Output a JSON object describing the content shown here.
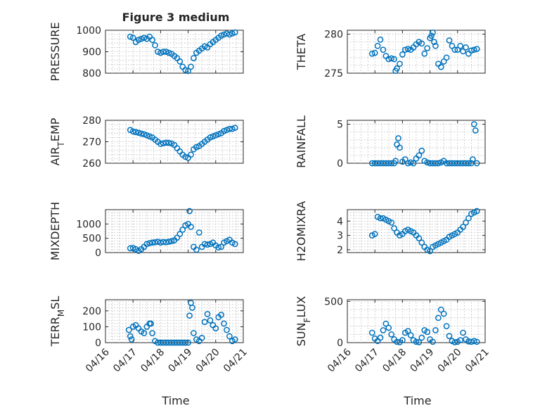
{
  "figure": {
    "title": "Figure 3 medium"
  },
  "time_ticks": [
    "04/16",
    "04/17",
    "04/18",
    "04/19",
    "04/20",
    "04/21"
  ],
  "marker_color": "#0072BD",
  "chart_data": [
    {
      "type": "scatter",
      "ylabel": "PRESSURE",
      "ylim": [
        800,
        1000
      ],
      "yticks": [
        800,
        900,
        1000
      ],
      "ytick_labels": [
        "800",
        "900",
        "1000"
      ],
      "xlabel": "",
      "title": "Figure 3 medium",
      "grid": true,
      "xlim": [
        0,
        5
      ],
      "x_unit": "days since 04/16",
      "x": [
        0.9,
        1.0,
        1.1,
        1.2,
        1.3,
        1.4,
        1.5,
        1.6,
        1.7,
        1.8,
        1.9,
        2.0,
        2.1,
        2.2,
        2.3,
        2.4,
        2.5,
        2.6,
        2.7,
        2.8,
        2.9,
        3.0,
        3.1,
        3.2,
        3.3,
        3.4,
        3.5,
        3.6,
        3.7,
        3.8,
        3.9,
        4.0,
        4.1,
        4.2,
        4.3,
        4.4,
        4.5,
        4.6,
        4.7
      ],
      "y": [
        970,
        965,
        945,
        955,
        960,
        965,
        960,
        970,
        955,
        930,
        900,
        895,
        900,
        900,
        895,
        890,
        880,
        870,
        855,
        830,
        815,
        810,
        830,
        870,
        895,
        905,
        915,
        925,
        920,
        935,
        945,
        955,
        965,
        975,
        980,
        985,
        980,
        985,
        990
      ]
    },
    {
      "type": "scatter",
      "ylabel": "THETA",
      "ylim": [
        275,
        280.5
      ],
      "yticks": [
        275,
        280
      ],
      "ytick_labels": [
        "275",
        "280"
      ],
      "xlabel": "",
      "grid": true,
      "xlim": [
        0,
        5
      ],
      "x": [
        0.9,
        1.0,
        1.1,
        1.2,
        1.3,
        1.4,
        1.5,
        1.6,
        1.7,
        1.75,
        1.8,
        1.9,
        2.0,
        2.1,
        2.2,
        2.3,
        2.4,
        2.5,
        2.6,
        2.7,
        2.8,
        2.9,
        3.0,
        3.05,
        3.1,
        3.15,
        3.2,
        3.3,
        3.4,
        3.5,
        3.6,
        3.7,
        3.8,
        3.9,
        4.0,
        4.1,
        4.2,
        4.3,
        4.4,
        4.5,
        4.6,
        4.7
      ],
      "y": [
        277.5,
        277.6,
        278.5,
        279.3,
        278.0,
        277.2,
        276.8,
        276.9,
        276.8,
        275.3,
        275.6,
        276.2,
        277.4,
        278.0,
        278.1,
        278.0,
        278.3,
        278.7,
        279.0,
        278.8,
        277.5,
        278.2,
        279.5,
        279.8,
        280.2,
        279.0,
        278.5,
        276.2,
        275.8,
        276.5,
        277.0,
        279.2,
        278.5,
        278.0,
        278.0,
        278.5,
        277.8,
        278.3,
        277.5,
        277.9,
        278.0,
        278.1
      ]
    },
    {
      "type": "scatter",
      "ylabel": "AIR_TEMP",
      "ylim": [
        260,
        280
      ],
      "yticks": [
        260,
        270,
        280
      ],
      "ytick_labels": [
        "260",
        "270",
        "280"
      ],
      "xlabel": "",
      "grid": true,
      "xlim": [
        0,
        5
      ],
      "x": [
        0.9,
        1.0,
        1.1,
        1.2,
        1.3,
        1.4,
        1.5,
        1.6,
        1.7,
        1.8,
        1.9,
        2.0,
        2.1,
        2.2,
        2.3,
        2.4,
        2.5,
        2.6,
        2.7,
        2.8,
        2.9,
        3.0,
        3.1,
        3.2,
        3.3,
        3.4,
        3.5,
        3.6,
        3.7,
        3.8,
        3.9,
        4.0,
        4.1,
        4.2,
        4.3,
        4.4,
        4.5,
        4.6,
        4.7
      ],
      "y": [
        275.5,
        274.8,
        274.5,
        274.2,
        273.8,
        273.5,
        273.0,
        272.5,
        272.0,
        271.0,
        270.0,
        269.0,
        269.3,
        269.6,
        269.5,
        269.2,
        268.5,
        267.0,
        265.5,
        264.0,
        263.0,
        262.5,
        264.0,
        266.5,
        267.5,
        268.0,
        269.0,
        270.0,
        271.0,
        272.0,
        272.5,
        273.0,
        273.5,
        274.0,
        275.0,
        275.5,
        276.0,
        276.0,
        276.5
      ]
    },
    {
      "type": "scatter",
      "ylabel": "RAINFALL",
      "ylim": [
        0,
        5.5
      ],
      "yticks": [
        0,
        5
      ],
      "ytick_labels": [
        "0",
        "5"
      ],
      "xlabel": "",
      "grid": true,
      "xlim": [
        0,
        5
      ],
      "x": [
        0.9,
        1.0,
        1.1,
        1.2,
        1.3,
        1.4,
        1.5,
        1.6,
        1.7,
        1.75,
        1.8,
        1.85,
        1.9,
        2.0,
        2.1,
        2.2,
        2.3,
        2.4,
        2.5,
        2.6,
        2.7,
        2.8,
        2.9,
        3.0,
        3.1,
        3.2,
        3.3,
        3.4,
        3.5,
        3.6,
        3.7,
        3.8,
        3.9,
        4.0,
        4.1,
        4.2,
        4.3,
        4.4,
        4.5,
        4.55,
        4.6,
        4.65,
        4.7
      ],
      "y": [
        0,
        0,
        0,
        0,
        0,
        0,
        0,
        0,
        0,
        0.3,
        2.4,
        3.2,
        2.0,
        0.2,
        0.5,
        0,
        0.1,
        0,
        0.6,
        1.0,
        1.6,
        0.3,
        0.1,
        0,
        0,
        0,
        0,
        0.1,
        0.3,
        0,
        0,
        0,
        0,
        0,
        0,
        0,
        0,
        0,
        0,
        0.5,
        5.0,
        4.2,
        0
      ]
    },
    {
      "type": "scatter",
      "ylabel": "MIXDEPTH",
      "ylim": [
        0,
        1500
      ],
      "yticks": [
        0,
        500,
        1000
      ],
      "ytick_labels": [
        "0",
        "500",
        "1000"
      ],
      "xlabel": "",
      "grid": true,
      "xlim": [
        0,
        5
      ],
      "x": [
        0.9,
        1.0,
        1.1,
        1.2,
        1.3,
        1.4,
        1.5,
        1.6,
        1.7,
        1.8,
        1.9,
        2.0,
        2.1,
        2.2,
        2.3,
        2.4,
        2.5,
        2.6,
        2.7,
        2.8,
        2.9,
        3.0,
        3.05,
        3.1,
        3.2,
        3.3,
        3.4,
        3.5,
        3.6,
        3.7,
        3.8,
        3.9,
        4.0,
        4.1,
        4.2,
        4.3,
        4.4,
        4.5,
        4.6,
        4.7
      ],
      "y": [
        150,
        160,
        120,
        60,
        120,
        200,
        300,
        330,
        350,
        360,
        380,
        350,
        370,
        360,
        380,
        400,
        430,
        520,
        650,
        800,
        950,
        1000,
        1450,
        900,
        200,
        100,
        700,
        200,
        300,
        280,
        300,
        350,
        250,
        180,
        200,
        350,
        400,
        450,
        350,
        300
      ]
    },
    {
      "type": "scatter",
      "ylabel": "H2OMIXRA",
      "ylim": [
        1.8,
        4.8
      ],
      "yticks": [
        2,
        3,
        4
      ],
      "ytick_labels": [
        "2",
        "3",
        "4"
      ],
      "xlabel": "",
      "grid": true,
      "xlim": [
        0,
        5
      ],
      "x": [
        0.9,
        1.0,
        1.1,
        1.2,
        1.3,
        1.4,
        1.5,
        1.6,
        1.7,
        1.8,
        1.9,
        2.0,
        2.1,
        2.2,
        2.3,
        2.4,
        2.5,
        2.6,
        2.7,
        2.8,
        2.9,
        3.0,
        3.1,
        3.2,
        3.3,
        3.4,
        3.5,
        3.6,
        3.7,
        3.8,
        3.9,
        4.0,
        4.1,
        4.2,
        4.3,
        4.4,
        4.5,
        4.6,
        4.7
      ],
      "y": [
        3.0,
        3.1,
        4.3,
        4.2,
        4.2,
        4.1,
        4.0,
        3.9,
        3.5,
        3.2,
        3.0,
        3.1,
        3.3,
        3.4,
        3.3,
        3.2,
        3.0,
        2.8,
        2.5,
        2.2,
        2.0,
        1.9,
        2.2,
        2.3,
        2.4,
        2.5,
        2.6,
        2.7,
        2.9,
        3.0,
        3.1,
        3.2,
        3.4,
        3.6,
        3.9,
        4.2,
        4.5,
        4.6,
        4.7
      ]
    },
    {
      "type": "scatter",
      "ylabel": "TERR_MSL",
      "ylim": [
        0,
        270
      ],
      "yticks": [
        0,
        100,
        200
      ],
      "ytick_labels": [
        "0",
        "100",
        "200"
      ],
      "xlabel": "",
      "grid": true,
      "xlim": [
        0,
        5
      ],
      "x": [
        0.85,
        0.9,
        0.95,
        1.0,
        1.1,
        1.2,
        1.3,
        1.4,
        1.5,
        1.6,
        1.65,
        1.7,
        1.8,
        1.9,
        2.0,
        2.1,
        2.2,
        2.3,
        2.4,
        2.5,
        2.6,
        2.7,
        2.8,
        2.9,
        3.0,
        3.05,
        3.1,
        3.15,
        3.2,
        3.3,
        3.4,
        3.5,
        3.6,
        3.7,
        3.8,
        3.9,
        4.0,
        4.1,
        4.2,
        4.3,
        4.4,
        4.5,
        4.6,
        4.7
      ],
      "y": [
        80,
        40,
        20,
        100,
        110,
        90,
        70,
        60,
        100,
        120,
        120,
        60,
        10,
        0,
        0,
        0,
        0,
        0,
        0,
        0,
        0,
        0,
        0,
        0,
        0,
        170,
        250,
        220,
        60,
        20,
        10,
        30,
        130,
        180,
        140,
        110,
        90,
        160,
        175,
        120,
        80,
        40,
        10,
        20
      ]
    },
    {
      "type": "scatter",
      "ylabel": "SUN_FLUX",
      "ylim": [
        0,
        520
      ],
      "yticks": [
        0,
        500
      ],
      "ytick_labels": [
        "0",
        "500"
      ],
      "xlabel": "",
      "grid": true,
      "xlim": [
        0,
        5
      ],
      "x": [
        0.9,
        1.0,
        1.1,
        1.2,
        1.3,
        1.4,
        1.5,
        1.6,
        1.7,
        1.8,
        1.9,
        2.0,
        2.1,
        2.2,
        2.3,
        2.4,
        2.5,
        2.6,
        2.7,
        2.8,
        2.9,
        3.0,
        3.1,
        3.2,
        3.3,
        3.4,
        3.5,
        3.6,
        3.7,
        3.8,
        3.9,
        4.0,
        4.1,
        4.2,
        4.3,
        4.4,
        4.5,
        4.6,
        4.7
      ],
      "y": [
        120,
        50,
        20,
        60,
        150,
        230,
        180,
        100,
        40,
        10,
        5,
        30,
        120,
        140,
        90,
        30,
        10,
        5,
        60,
        150,
        130,
        40,
        10,
        150,
        300,
        400,
        350,
        200,
        80,
        20,
        5,
        10,
        30,
        120,
        40,
        15,
        10,
        20,
        10
      ]
    }
  ]
}
